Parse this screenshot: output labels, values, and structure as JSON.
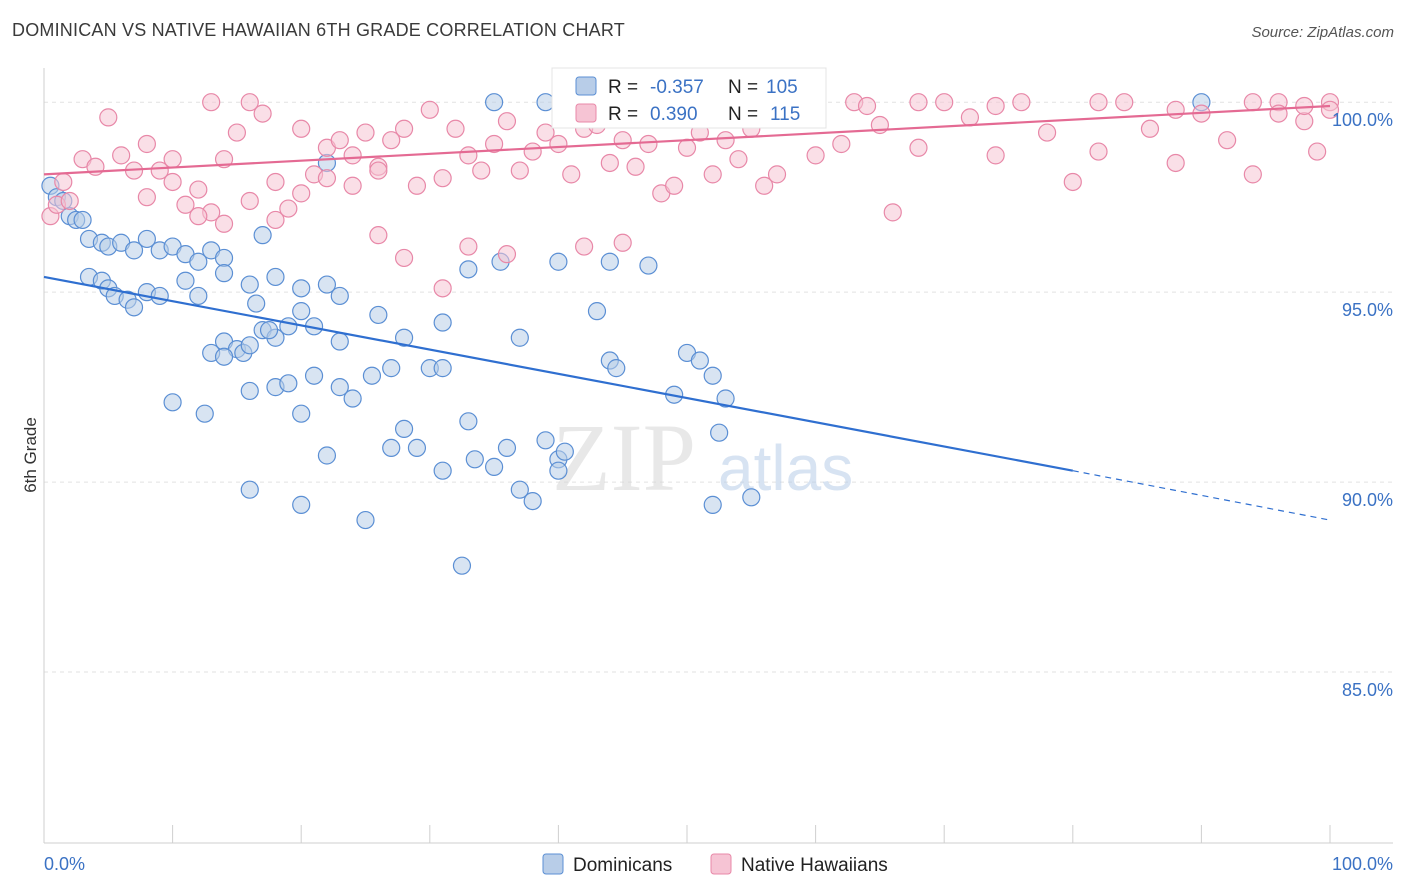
{
  "title": "DOMINICAN VS NATIVE HAWAIIAN 6TH GRADE CORRELATION CHART",
  "source": "Source: ZipAtlas.com",
  "watermark": {
    "zip": "ZIP",
    "atlas": "atlas"
  },
  "colors": {
    "blue": "#5b8fd4",
    "blue_fill": "#b8cde8",
    "blue_line": "#2f6fd0",
    "pink": "#e888a8",
    "pink_fill": "#f6c4d4",
    "pink_line": "#e46a93",
    "label": "#3b72c4"
  },
  "chart_data": {
    "type": "scatter",
    "title": "DOMINICAN VS NATIVE HAWAIIAN 6TH GRADE CORRELATION CHART",
    "xlabel": "",
    "ylabel": "6th Grade",
    "xlim": [
      0,
      100
    ],
    "ylim": [
      80.5,
      100.9
    ],
    "x_tick_labels": {
      "left": "0.0%",
      "right": "100.0%"
    },
    "y_ticks": [
      {
        "value": 100,
        "label": "100.0%"
      },
      {
        "value": 95,
        "label": "95.0%"
      },
      {
        "value": 90,
        "label": "90.0%"
      },
      {
        "value": 85,
        "label": "85.0%"
      }
    ],
    "legend": {
      "entries": [
        {
          "r_label": "R =",
          "r_value": "-0.357",
          "n_label": "N =",
          "n_value": "105"
        },
        {
          "r_label": "R =",
          "r_value": "0.390",
          "n_label": "N =",
          "n_value": "115"
        }
      ]
    },
    "series": [
      {
        "name": "Dominicans",
        "color": "#5b8fd4",
        "trend": {
          "x0": 0,
          "y0": 95.4,
          "x1": 80,
          "y1": 90.3,
          "dash_to_x": 100,
          "dash_to_y": 89.0
        },
        "points": [
          [
            0.5,
            97.8
          ],
          [
            1,
            97.5
          ],
          [
            1.5,
            97.4
          ],
          [
            2,
            97.0
          ],
          [
            2.5,
            96.9
          ],
          [
            3,
            96.9
          ],
          [
            3.5,
            96.4
          ],
          [
            4.5,
            96.3
          ],
          [
            5,
            96.2
          ],
          [
            6,
            96.3
          ],
          [
            7,
            96.1
          ],
          [
            8,
            96.4
          ],
          [
            9,
            96.1
          ],
          [
            10,
            96.2
          ],
          [
            11,
            96.0
          ],
          [
            12,
            95.8
          ],
          [
            13,
            96.1
          ],
          [
            14,
            95.9
          ],
          [
            3.5,
            95.4
          ],
          [
            4.5,
            95.3
          ],
          [
            5,
            95.1
          ],
          [
            5.5,
            94.9
          ],
          [
            6.5,
            94.8
          ],
          [
            7,
            94.6
          ],
          [
            8,
            95.0
          ],
          [
            9,
            94.9
          ],
          [
            11,
            95.3
          ],
          [
            12,
            94.9
          ],
          [
            14,
            95.5
          ],
          [
            16,
            95.2
          ],
          [
            18,
            95.4
          ],
          [
            20,
            95.1
          ],
          [
            22,
            95.2
          ],
          [
            23,
            94.9
          ],
          [
            13,
            93.4
          ],
          [
            14,
            93.7
          ],
          [
            15,
            93.5
          ],
          [
            15.5,
            93.4
          ],
          [
            16,
            93.6
          ],
          [
            17,
            94.0
          ],
          [
            18,
            93.8
          ],
          [
            19,
            94.1
          ],
          [
            20,
            94.5
          ],
          [
            21,
            94.1
          ],
          [
            17.5,
            94.0
          ],
          [
            16.5,
            94.7
          ],
          [
            10,
            92.1
          ],
          [
            12.5,
            91.8
          ],
          [
            14,
            93.3
          ],
          [
            16,
            92.4
          ],
          [
            18,
            92.5
          ],
          [
            19,
            92.6
          ],
          [
            21,
            92.8
          ],
          [
            23,
            92.5
          ],
          [
            24,
            92.2
          ],
          [
            25.5,
            92.8
          ],
          [
            27,
            93.0
          ],
          [
            23,
            93.7
          ],
          [
            30,
            93.0
          ],
          [
            31,
            93.0
          ],
          [
            20,
            91.8
          ],
          [
            22,
            90.7
          ],
          [
            27,
            90.9
          ],
          [
            28,
            91.4
          ],
          [
            29,
            90.9
          ],
          [
            31,
            90.3
          ],
          [
            33,
            91.6
          ],
          [
            33.5,
            90.6
          ],
          [
            36,
            90.9
          ],
          [
            39,
            91.1
          ],
          [
            40,
            90.6
          ],
          [
            40.5,
            90.8
          ],
          [
            35,
            90.4
          ],
          [
            40,
            90.3
          ],
          [
            16,
            89.8
          ],
          [
            20,
            89.4
          ],
          [
            25,
            89.0
          ],
          [
            32.5,
            87.8
          ],
          [
            37,
            89.8
          ],
          [
            38,
            89.5
          ],
          [
            52,
            89.4
          ],
          [
            55,
            89.6
          ],
          [
            33,
            95.6
          ],
          [
            35.5,
            95.8
          ],
          [
            31,
            94.2
          ],
          [
            40,
            95.8
          ],
          [
            44,
            95.8
          ],
          [
            47,
            95.7
          ],
          [
            26,
            94.4
          ],
          [
            28,
            93.8
          ],
          [
            37,
            93.8
          ],
          [
            44,
            93.2
          ],
          [
            44.5,
            93.0
          ],
          [
            43,
            94.5
          ],
          [
            50,
            93.4
          ],
          [
            52,
            92.8
          ],
          [
            49,
            92.3
          ],
          [
            51,
            93.2
          ],
          [
            53,
            92.2
          ],
          [
            52.5,
            91.3
          ],
          [
            22,
            98.4
          ],
          [
            35,
            100.0
          ],
          [
            39,
            100.0
          ],
          [
            43,
            100.0
          ],
          [
            45,
            100.0
          ],
          [
            51,
            100.0
          ],
          [
            90,
            100.0
          ],
          [
            17,
            96.5
          ]
        ]
      },
      {
        "name": "Native Hawaiians",
        "color": "#e888a8",
        "trend": {
          "x0": 0,
          "y0": 98.1,
          "x1": 100,
          "y1": 99.9
        },
        "points": [
          [
            0.5,
            97.0
          ],
          [
            1,
            97.3
          ],
          [
            1.5,
            97.9
          ],
          [
            2,
            97.4
          ],
          [
            3,
            98.5
          ],
          [
            4,
            98.3
          ],
          [
            5,
            99.6
          ],
          [
            6,
            98.6
          ],
          [
            7,
            98.2
          ],
          [
            8,
            98.9
          ],
          [
            9,
            98.2
          ],
          [
            10,
            98.5
          ],
          [
            11,
            97.3
          ],
          [
            12,
            97.7
          ],
          [
            13,
            97.1
          ],
          [
            13,
            100.0
          ],
          [
            14,
            98.5
          ],
          [
            15,
            99.2
          ],
          [
            16,
            100.0
          ],
          [
            17,
            99.7
          ],
          [
            18,
            97.9
          ],
          [
            19,
            97.2
          ],
          [
            20,
            99.3
          ],
          [
            21,
            98.1
          ],
          [
            22,
            98.8
          ],
          [
            23,
            99.0
          ],
          [
            24,
            98.6
          ],
          [
            25,
            99.2
          ],
          [
            26,
            98.3
          ],
          [
            27,
            99.0
          ],
          [
            28,
            99.3
          ],
          [
            29,
            97.8
          ],
          [
            30,
            99.8
          ],
          [
            31,
            98.0
          ],
          [
            32,
            99.3
          ],
          [
            33,
            98.6
          ],
          [
            34,
            98.2
          ],
          [
            35,
            98.9
          ],
          [
            36,
            99.5
          ],
          [
            37,
            98.2
          ],
          [
            38,
            98.7
          ],
          [
            39,
            99.2
          ],
          [
            40,
            98.9
          ],
          [
            41,
            98.1
          ],
          [
            42,
            99.3
          ],
          [
            43,
            99.4
          ],
          [
            44,
            98.4
          ],
          [
            45,
            99.0
          ],
          [
            46,
            98.3
          ],
          [
            47,
            98.9
          ],
          [
            48,
            97.6
          ],
          [
            49,
            97.8
          ],
          [
            50,
            98.8
          ],
          [
            51,
            99.2
          ],
          [
            52,
            98.1
          ],
          [
            53,
            99.0
          ],
          [
            54,
            98.5
          ],
          [
            55,
            99.3
          ],
          [
            56,
            97.8
          ],
          [
            57,
            98.1
          ],
          [
            58,
            99.7
          ],
          [
            59,
            100.0
          ],
          [
            60,
            98.6
          ],
          [
            62,
            98.9
          ],
          [
            63,
            100.0
          ],
          [
            65,
            99.4
          ],
          [
            66,
            97.1
          ],
          [
            68,
            98.8
          ],
          [
            70,
            100.0
          ],
          [
            72,
            99.6
          ],
          [
            74,
            98.6
          ],
          [
            76,
            100.0
          ],
          [
            78,
            99.2
          ],
          [
            80,
            97.9
          ],
          [
            82,
            98.7
          ],
          [
            84,
            100.0
          ],
          [
            86,
            99.3
          ],
          [
            88,
            98.4
          ],
          [
            90,
            99.7
          ],
          [
            92,
            99.0
          ],
          [
            94,
            98.1
          ],
          [
            96,
            100.0
          ],
          [
            98,
            99.5
          ],
          [
            99,
            98.7
          ],
          [
            100,
            100.0
          ],
          [
            26,
            96.5
          ],
          [
            28,
            95.9
          ],
          [
            31,
            95.1
          ],
          [
            33,
            96.2
          ],
          [
            36,
            96.0
          ],
          [
            42,
            96.2
          ],
          [
            45,
            96.3
          ],
          [
            8,
            97.5
          ],
          [
            10,
            97.9
          ],
          [
            12,
            97.0
          ],
          [
            14,
            96.8
          ],
          [
            16,
            97.4
          ],
          [
            18,
            96.9
          ],
          [
            20,
            97.6
          ],
          [
            22,
            98.0
          ],
          [
            24,
            97.8
          ],
          [
            26,
            98.2
          ],
          [
            44,
            100.0
          ],
          [
            48,
            99.8
          ],
          [
            54,
            99.7
          ],
          [
            64,
            99.9
          ],
          [
            68,
            100.0
          ],
          [
            74,
            99.9
          ],
          [
            82,
            100.0
          ],
          [
            88,
            99.8
          ],
          [
            94,
            100.0
          ],
          [
            96,
            99.7
          ],
          [
            98,
            99.9
          ],
          [
            100,
            99.8
          ]
        ]
      }
    ],
    "bottom_legend": [
      "Dominicans",
      "Native Hawaiians"
    ]
  }
}
